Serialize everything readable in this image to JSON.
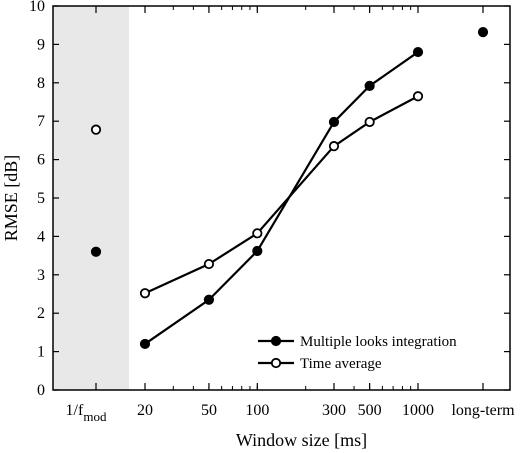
{
  "chart_data": {
    "type": "line",
    "xlabel": "Window size [ms]",
    "ylabel": "RMSE [dB]",
    "ylim": [
      0,
      10
    ],
    "yticks": [
      0,
      1,
      2,
      3,
      4,
      5,
      6,
      7,
      8,
      9,
      10
    ],
    "grid": "off",
    "legend_position": "bottom-right",
    "x_scale": "log (20–1000 ms) with separate categories",
    "categories": [
      {
        "label": "1/f",
        "subscript": "mod",
        "shaded": true
      },
      {
        "label": "20",
        "value": 20
      },
      {
        "label": "50",
        "value": 50
      },
      {
        "label": "100",
        "value": 100
      },
      {
        "label": "300",
        "value": 300
      },
      {
        "label": "500",
        "value": 500
      },
      {
        "label": "1000",
        "value": 1000
      },
      {
        "label": "long-term"
      }
    ],
    "series": [
      {
        "name": "Multiple looks integration",
        "marker": "filled",
        "points": [
          {
            "x": "1/fmod",
            "y": 3.6
          },
          {
            "x": 20,
            "y": 1.2
          },
          {
            "x": 50,
            "y": 2.35
          },
          {
            "x": 100,
            "y": 3.62
          },
          {
            "x": 300,
            "y": 6.98
          },
          {
            "x": 500,
            "y": 7.92
          },
          {
            "x": 1000,
            "y": 8.8
          },
          {
            "x": "long-term",
            "y": 9.32
          }
        ],
        "connected_x": [
          20,
          50,
          100,
          300,
          500,
          1000
        ]
      },
      {
        "name": "Time average",
        "marker": "open",
        "points": [
          {
            "x": "1/fmod",
            "y": 6.78
          },
          {
            "x": 20,
            "y": 2.52
          },
          {
            "x": 50,
            "y": 3.28
          },
          {
            "x": 100,
            "y": 4.08
          },
          {
            "x": 300,
            "y": 6.35
          },
          {
            "x": 500,
            "y": 6.98
          },
          {
            "x": 1000,
            "y": 7.65
          }
        ],
        "connected_x": [
          20,
          50,
          100,
          300,
          500,
          1000
        ]
      }
    ]
  }
}
